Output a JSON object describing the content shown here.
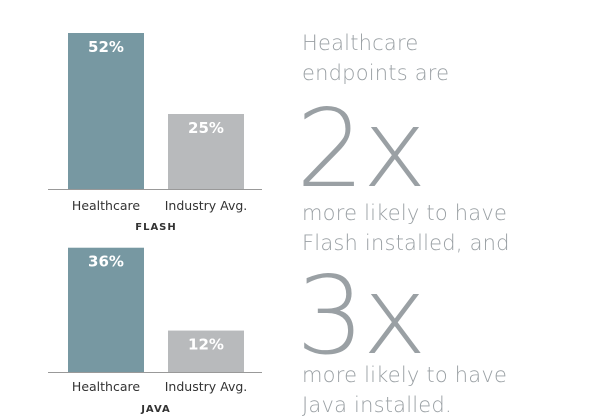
{
  "chart_data": [
    {
      "type": "bar",
      "title": "FLASH",
      "categories": [
        "Healthcare",
        "Industry Avg."
      ],
      "values": [
        52,
        25
      ],
      "value_labels": [
        "52%",
        "25%"
      ],
      "ylim": [
        0,
        60
      ],
      "colors": [
        "#7798a2",
        "#b8babc"
      ],
      "grid": false,
      "legend": "none"
    },
    {
      "type": "bar",
      "title": "JAVA",
      "categories": [
        "Healthcare",
        "Industry Avg."
      ],
      "values": [
        36,
        12
      ],
      "value_labels": [
        "36%",
        "12%"
      ],
      "ylim": [
        0,
        42
      ],
      "colors": [
        "#7798a2",
        "#b8babc"
      ],
      "grid": false,
      "legend": "none"
    }
  ],
  "callouts": {
    "headline_line1": "Healthcare",
    "headline_line2": "endpoints are",
    "flash_multiplier": "2x",
    "flash_line1": "more likely to have",
    "flash_line2": "Flash installed, and",
    "java_multiplier": "3x",
    "java_line1": "more likely to have",
    "java_line2": "Java installed."
  },
  "colors": {
    "label_text": "#333333",
    "callout_text": "#9aa0a4",
    "axis_line": "#999999",
    "bar_value_text": "#ffffff"
  }
}
